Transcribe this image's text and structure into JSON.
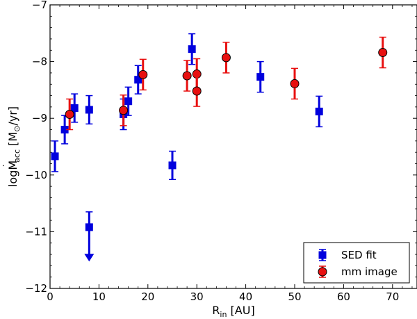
{
  "chart_data": {
    "type": "scatter",
    "xlabel_main": "R",
    "xlabel_sub": "in",
    "xlabel_unit": " [AU]",
    "ylabel_prefix": "log",
    "ylabel_M": "M",
    "ylabel_dot": "˙",
    "ylabel_sub": "acc",
    "ylabel_unit_open": " [M",
    "ylabel_sun": "⊙",
    "ylabel_unit_close": "/yr]",
    "xlim": [
      0,
      75
    ],
    "ylim": [
      -12,
      -7
    ],
    "xticks": [
      0,
      10,
      20,
      30,
      40,
      50,
      60,
      70
    ],
    "yticks": [
      -12,
      -11,
      -10,
      -9,
      -8,
      -7
    ],
    "xtick_labels": [
      "0",
      "10",
      "20",
      "30",
      "40",
      "50",
      "60",
      "70"
    ],
    "ytick_labels": [
      "−12",
      "−11",
      "−10",
      "−9",
      "−8",
      "−7"
    ],
    "legend_position": "lower-right",
    "series": [
      {
        "name": "SED fit",
        "marker": "square",
        "color": "#0000dd",
        "points": [
          {
            "x": 1,
            "y": -9.67,
            "err": 0.27
          },
          {
            "x": 3,
            "y": -9.2,
            "err": 0.25
          },
          {
            "x": 5,
            "y": -8.82,
            "err": 0.25
          },
          {
            "x": 8,
            "y": -8.85,
            "err": 0.25
          },
          {
            "x": 15,
            "y": -8.93,
            "err": 0.27
          },
          {
            "x": 16,
            "y": -8.7,
            "err": 0.25
          },
          {
            "x": 18,
            "y": -8.32,
            "err": 0.25
          },
          {
            "x": 25,
            "y": -9.83,
            "err": 0.25
          },
          {
            "x": 29,
            "y": -7.78,
            "err": 0.27
          },
          {
            "x": 43,
            "y": -8.27,
            "err": 0.27
          },
          {
            "x": 55,
            "y": -8.88,
            "err": 0.27
          }
        ],
        "upper_limits": [
          {
            "x": 8,
            "y": -10.92,
            "err_up": 0.27,
            "arrow_to": -11.5
          }
        ]
      },
      {
        "name": "mm image",
        "marker": "circle",
        "color": "#e81010",
        "points": [
          {
            "x": 4,
            "y": -8.93,
            "err": 0.27
          },
          {
            "x": 15,
            "y": -8.86,
            "err": 0.27
          },
          {
            "x": 19,
            "y": -8.23,
            "err": 0.27
          },
          {
            "x": 28,
            "y": -8.25,
            "err": 0.27
          },
          {
            "x": 30,
            "y": -8.22,
            "err": 0.27
          },
          {
            "x": 30,
            "y": -8.52,
            "err": 0.27
          },
          {
            "x": 36,
            "y": -7.93,
            "err": 0.27
          },
          {
            "x": 50,
            "y": -8.39,
            "err": 0.27
          },
          {
            "x": 68,
            "y": -7.84,
            "err": 0.27
          }
        ]
      }
    ]
  }
}
